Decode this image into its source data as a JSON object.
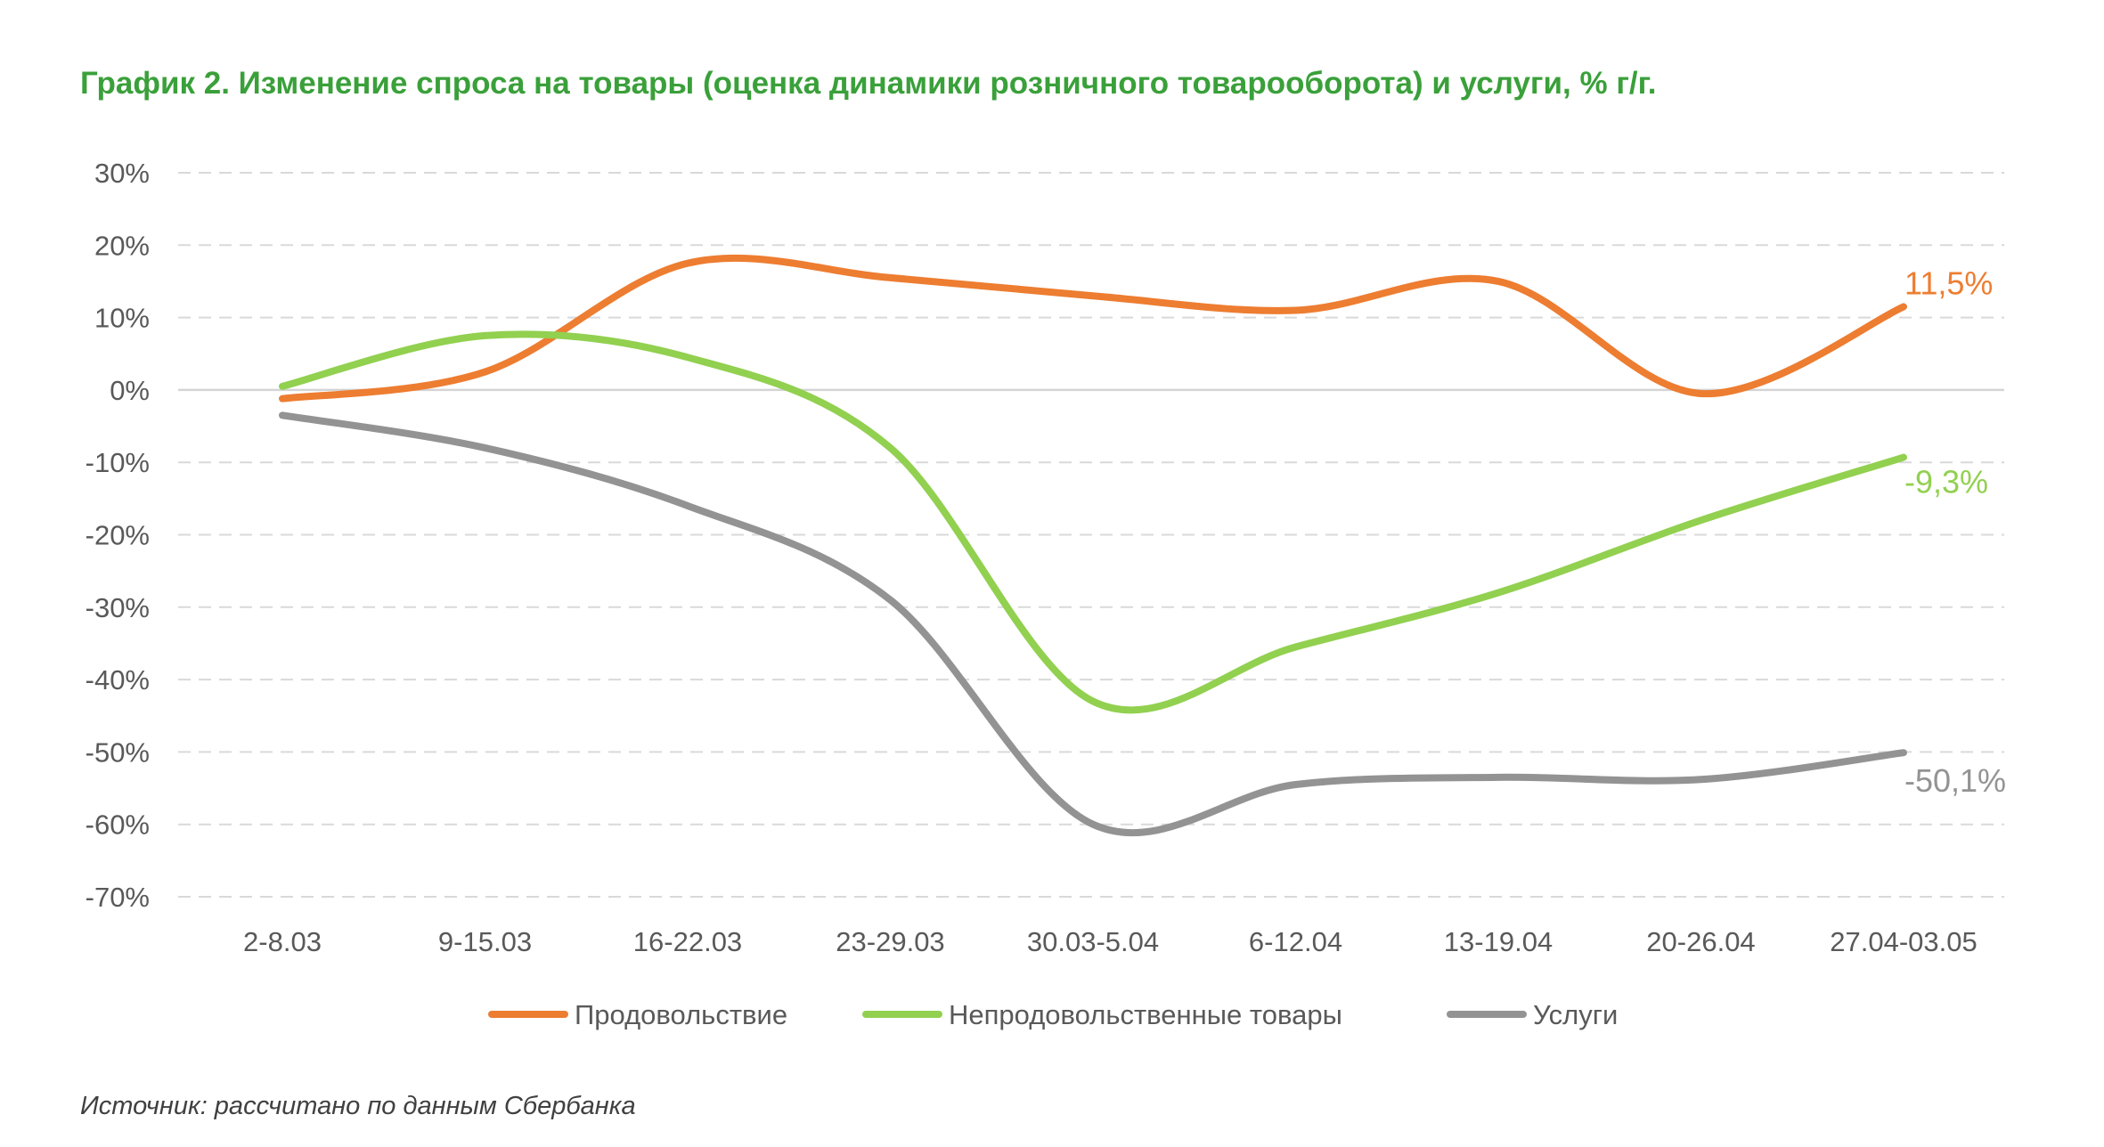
{
  "chart_data": {
    "type": "line",
    "title": "График 2. Изменение спроса на товары (оценка динамики розничного товарооборота) и услуги, % г/г.",
    "xlabel": "",
    "ylabel": "",
    "categories": [
      "2-8.03",
      "9-15.03",
      "16-22.03",
      "23-29.03",
      "30.03-5.04",
      "6-12.04",
      "13-19.04",
      "20-26.04",
      "27.04-03.05"
    ],
    "ylim": [
      -70,
      30
    ],
    "yticks": [
      30,
      20,
      10,
      0,
      -10,
      -20,
      -30,
      -40,
      -50,
      -60,
      -70
    ],
    "ytick_labels": [
      "30%",
      "20%",
      "10%",
      "0%",
      "-10%",
      "-20%",
      "-30%",
      "-40%",
      "-50%",
      "-60%",
      "-70%"
    ],
    "grid": "horizontal dashed",
    "legend_position": "bottom",
    "series": [
      {
        "name": "Продовольствие",
        "color": "#ed7d31",
        "values": [
          -1.2,
          2.5,
          17.5,
          15.5,
          13.0,
          11.0,
          15.0,
          -0.5,
          11.5
        ],
        "end_label": "11,5%"
      },
      {
        "name": "Непродовольственные товары",
        "color": "#92d050",
        "values": [
          0.5,
          7.5,
          4.5,
          -8.0,
          -43.0,
          -35.5,
          -28.0,
          -18.0,
          -9.3
        ],
        "end_label": "-9,3%"
      },
      {
        "name": "Услуги",
        "color": "#939393",
        "values": [
          -3.5,
          -8.0,
          -16.0,
          -29.0,
          -60.0,
          -54.5,
          -53.5,
          -53.8,
          -50.1
        ],
        "end_label": "-50,1%"
      }
    ]
  },
  "source_note": "Источник: рассчитано по данным Сбербанка"
}
